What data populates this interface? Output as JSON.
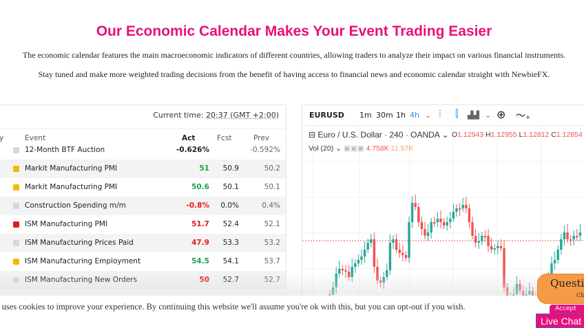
{
  "heading": "Our Economic Calendar Makes Your Event Trading Easier",
  "intro1": "The economic calendar features the main macroeconomic indicators of different countries, allowing traders to analyze their impact on various financial instruments.",
  "intro2": "Stay tuned and make more weighted trading decisions from the benefit of having access to financial news and economic calendar straight with NewbieFX.",
  "calendar": {
    "current_time_label": "Current time:",
    "current_time": "20:37 (GMT +2:00)",
    "columns": [
      "y",
      "Event",
      "Act",
      "Fcst",
      "Prev"
    ],
    "rows": [
      {
        "event": "12-Month BTF Auction",
        "impact": "#d8d8d8",
        "act": "-0.626%",
        "act_color": "#222222",
        "fcst": "",
        "prev": "-0.592%"
      },
      {
        "event": "Markit Manufacturing PMI",
        "impact": "#f5b800",
        "act": "51",
        "act_color": "#1aa34a",
        "fcst": "50.9",
        "prev": "50.2"
      },
      {
        "event": "Markit Manufacturing PMI",
        "impact": "#f5b800",
        "act": "50.6",
        "act_color": "#1aa34a",
        "fcst": "50.1",
        "prev": "50.1"
      },
      {
        "event": "Construction Spending m/m",
        "impact": "#d8d8d8",
        "act": "-0.8%",
        "act_color": "#e8161e",
        "fcst": "0.0%",
        "prev": "0.4%"
      },
      {
        "event": "ISM Manufacturing PMI",
        "impact": "#e8161e",
        "act": "51.7",
        "act_color": "#e8161e",
        "fcst": "52.4",
        "prev": "52.1"
      },
      {
        "event": "ISM Manufacturing Prices Paid",
        "impact": "#d8d8d8",
        "act": "47.9",
        "act_color": "#e8161e",
        "fcst": "53.3",
        "prev": "53.2"
      },
      {
        "event": "ISM Manufacturing Employment",
        "impact": "#f5b800",
        "act": "54.5",
        "act_color": "#1aa34a",
        "fcst": "54.1",
        "prev": "53.7"
      },
      {
        "event": "ISM Manufacturing New Orders",
        "impact": "#d8d8d8",
        "act": "50",
        "act_color": "#e8161e",
        "fcst": "52.7",
        "prev": "52.7"
      }
    ]
  },
  "chart": {
    "symbol": "EURUSD",
    "intervals": [
      "1m",
      "30m",
      "1h",
      "4h"
    ],
    "active_interval": "4h",
    "title": "Euro / U.S. Dollar · 240 · OANDA",
    "ohlc": {
      "o": "1.12943",
      "h": "1.12955",
      "l": "1.12812",
      "c": "1.12854"
    },
    "volume_label": "Vol (20)",
    "vol1": "4.758K",
    "vol2": "11.57K",
    "up_color": "#26a69a",
    "down_color": "#ef5350"
  },
  "cookie_text": "e uses cookies to improve your experience. By continuing this website we'll assume you're ok with this, but you can opt-out if you wish.",
  "chat": {
    "question": "Questi",
    "click": "Cli",
    "accept": "Accept",
    "live": "Live Chat"
  }
}
